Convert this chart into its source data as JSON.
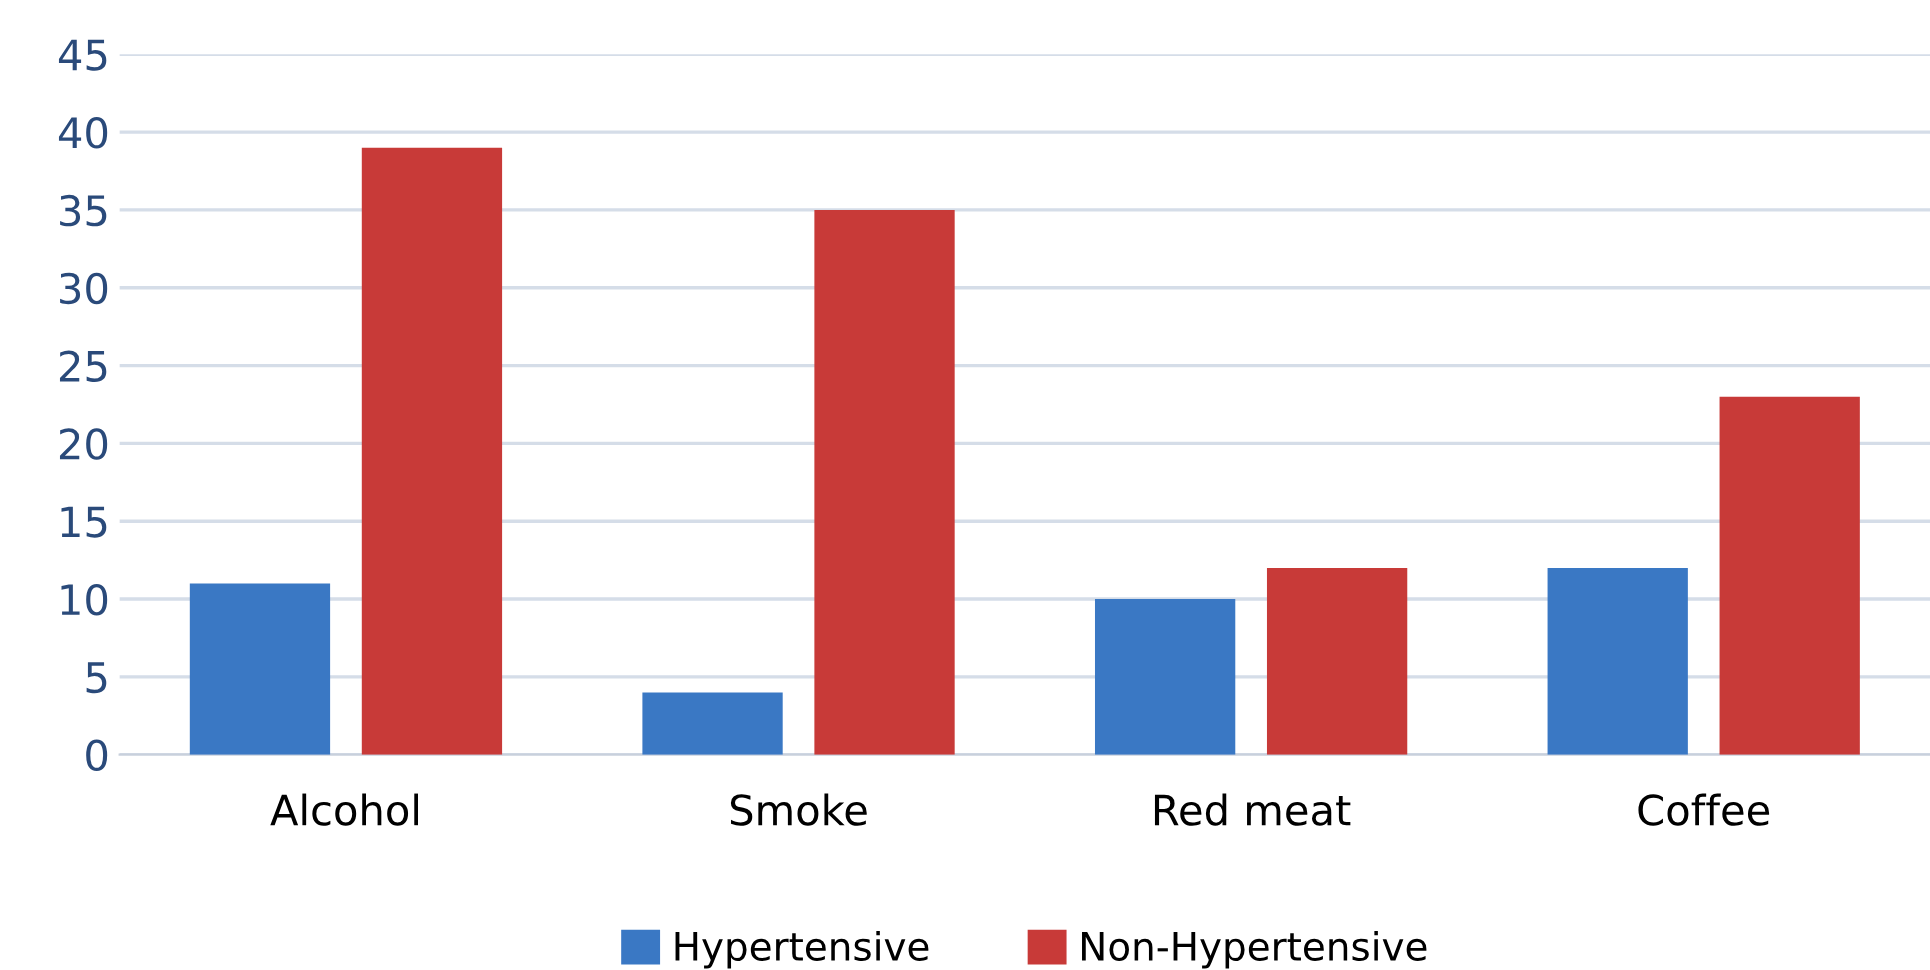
{
  "chart_data": {
    "type": "bar",
    "categories": [
      "Alcohol",
      "Smoke",
      "Red meat",
      "Coffee"
    ],
    "series": [
      {
        "name": "Hypertensive",
        "color": "#3a78c4",
        "values": [
          11,
          4,
          10,
          12
        ]
      },
      {
        "name": "Non-Hypertensive",
        "color": "#c83a38",
        "values": [
          39,
          35,
          12,
          23
        ]
      }
    ],
    "ylim": [
      0,
      45
    ],
    "yticks": [
      0,
      5,
      10,
      15,
      20,
      25,
      30,
      35,
      40,
      45
    ],
    "grid": "y",
    "legend": "bottom"
  }
}
